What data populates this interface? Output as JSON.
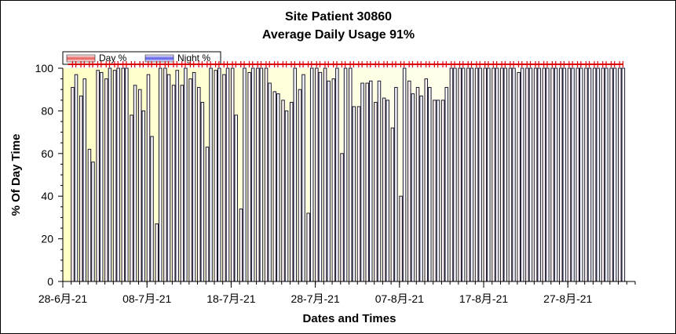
{
  "colors": {
    "day_bar_fill": "#fff3f3",
    "night_bar_fill": "#f4f4ff",
    "bar_outline": "#1a1a2e",
    "day_swatch": "#e85c5c",
    "night_swatch": "#5c5ce8",
    "marker_red": "#dd0000",
    "plot_bg_left": "#ffffc6",
    "plot_bg_right": "#ffffff"
  },
  "chart_data": {
    "type": "bar",
    "title": "Site Patient 30860",
    "subtitle": "Average Daily Usage 91%",
    "xlabel": "Dates and Times",
    "ylabel": "% Of Day Time",
    "ylim": [
      0,
      100
    ],
    "yticks": [
      0,
      20,
      40,
      60,
      80,
      100
    ],
    "xlim": [
      "2021-06-28",
      "2021-09-04"
    ],
    "xtick_labels": [
      {
        "date": "2021-06-28",
        "label": "28-6月-21"
      },
      {
        "date": "2021-07-08",
        "label": "08-7月-21"
      },
      {
        "date": "2021-07-18",
        "label": "18-7月-21"
      },
      {
        "date": "2021-07-28",
        "label": "28-7月-21"
      },
      {
        "date": "2021-08-07",
        "label": "07-8月-21"
      },
      {
        "date": "2021-08-17",
        "label": "17-8月-21"
      },
      {
        "date": "2021-08-27",
        "label": "27-8月-21"
      }
    ],
    "grid": false,
    "legend_position": "top-left",
    "series": [
      {
        "name": "Day %",
        "x": [
          "2021-06-29",
          "2021-06-30",
          "2021-07-01",
          "2021-07-02",
          "2021-07-03",
          "2021-07-04",
          "2021-07-05",
          "2021-07-06",
          "2021-07-07",
          "2021-07-08",
          "2021-07-09",
          "2021-07-10",
          "2021-07-11",
          "2021-07-12",
          "2021-07-13",
          "2021-07-14",
          "2021-07-15",
          "2021-07-16",
          "2021-07-17",
          "2021-07-18",
          "2021-07-19",
          "2021-07-20",
          "2021-07-21",
          "2021-07-22",
          "2021-07-23",
          "2021-07-24",
          "2021-07-25",
          "2021-07-26",
          "2021-07-27",
          "2021-07-28",
          "2021-07-29",
          "2021-07-30",
          "2021-07-31",
          "2021-08-01",
          "2021-08-02",
          "2021-08-03",
          "2021-08-04",
          "2021-08-05",
          "2021-08-06",
          "2021-08-07",
          "2021-08-08",
          "2021-08-09",
          "2021-08-10",
          "2021-08-11",
          "2021-08-12",
          "2021-08-13",
          "2021-08-14",
          "2021-08-15",
          "2021-08-16",
          "2021-08-17",
          "2021-08-18",
          "2021-08-19",
          "2021-08-20",
          "2021-08-21",
          "2021-08-22",
          "2021-08-23",
          "2021-08-24",
          "2021-08-25",
          "2021-08-26",
          "2021-08-27",
          "2021-08-28",
          "2021-08-29",
          "2021-08-30",
          "2021-08-31",
          "2021-09-01",
          "2021-09-02"
        ],
        "values": [
          91,
          87,
          62,
          99,
          95,
          99,
          100,
          78,
          90,
          97,
          27,
          100,
          92,
          92,
          95,
          91,
          63,
          99,
          97,
          100,
          34,
          98,
          100,
          100,
          89,
          85,
          84,
          90,
          32,
          100,
          100,
          95,
          60,
          100,
          82,
          93,
          84,
          86,
          72,
          40,
          94,
          91,
          95,
          85,
          85,
          100,
          100,
          100,
          100,
          100,
          100,
          100,
          100,
          98,
          100,
          100,
          100,
          100,
          100,
          100,
          100,
          100,
          100,
          100,
          100,
          100
        ]
      },
      {
        "name": "Night %",
        "x": [
          "2021-06-29",
          "2021-06-30",
          "2021-07-01",
          "2021-07-02",
          "2021-07-03",
          "2021-07-04",
          "2021-07-05",
          "2021-07-06",
          "2021-07-07",
          "2021-07-08",
          "2021-07-09",
          "2021-07-10",
          "2021-07-11",
          "2021-07-12",
          "2021-07-13",
          "2021-07-14",
          "2021-07-15",
          "2021-07-16",
          "2021-07-17",
          "2021-07-18",
          "2021-07-19",
          "2021-07-20",
          "2021-07-21",
          "2021-07-22",
          "2021-07-23",
          "2021-07-24",
          "2021-07-25",
          "2021-07-26",
          "2021-07-27",
          "2021-07-28",
          "2021-07-29",
          "2021-07-30",
          "2021-07-31",
          "2021-08-01",
          "2021-08-02",
          "2021-08-03",
          "2021-08-04",
          "2021-08-05",
          "2021-08-06",
          "2021-08-07",
          "2021-08-08",
          "2021-08-09",
          "2021-08-10",
          "2021-08-11",
          "2021-08-12",
          "2021-08-13",
          "2021-08-14",
          "2021-08-15",
          "2021-08-16",
          "2021-08-17",
          "2021-08-18",
          "2021-08-19",
          "2021-08-20",
          "2021-08-21",
          "2021-08-22",
          "2021-08-23",
          "2021-08-24",
          "2021-08-25",
          "2021-08-26",
          "2021-08-27",
          "2021-08-28",
          "2021-08-29",
          "2021-08-30",
          "2021-08-31",
          "2021-09-01",
          "2021-09-02"
        ],
        "values": [
          97,
          95,
          56,
          98,
          100,
          100,
          100,
          92,
          80,
          68,
          100,
          97,
          99,
          100,
          98,
          84,
          100,
          100,
          100,
          78,
          100,
          100,
          100,
          93,
          88,
          80,
          100,
          97,
          100,
          98,
          94,
          100,
          100,
          82,
          93,
          94,
          94,
          85,
          91,
          100,
          88,
          87,
          91,
          85,
          91,
          100,
          100,
          100,
          100,
          100,
          100,
          100,
          100,
          100,
          100,
          100,
          100,
          100,
          100,
          100,
          100,
          100,
          100,
          100,
          100,
          100
        ]
      }
    ]
  }
}
